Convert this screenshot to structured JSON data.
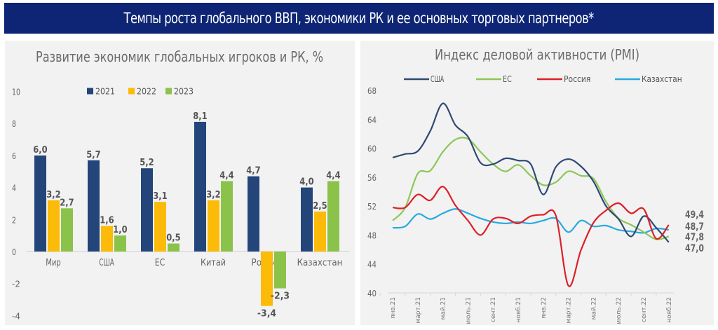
{
  "header": {
    "title": "Темпы роста глобального ВВП, экономики РК и ее основных торговых партнеров*"
  },
  "colors": {
    "banner_bg": "#0e2474",
    "c2021": "#24457a",
    "c2022": "#fbbb08",
    "c2023": "#8bc34a",
    "usa": "#2e4a74",
    "eu": "#8cc759",
    "russia": "#dc2027",
    "kazakhstan": "#29a9e0",
    "axis_text": "#666666"
  },
  "chart_data": [
    {
      "type": "bar",
      "title": "Развитие экономик глобальных игроков и РК, %",
      "xlabel": "",
      "ylabel": "",
      "ylim": [
        -4,
        10
      ],
      "yticks": [
        "10",
        "8",
        "6",
        "4",
        "2",
        "0",
        "-2",
        "-4"
      ],
      "ytick_values": [
        10,
        8,
        6,
        4,
        2,
        0,
        -2,
        -4
      ],
      "legend_position": "top",
      "grid": false,
      "categories": [
        "Мир",
        "США",
        "ЕС",
        "Китай",
        "Россия",
        "Казахстан"
      ],
      "series": [
        {
          "name": "2021",
          "values": [
            6.0,
            5.7,
            5.2,
            8.1,
            4.7,
            4.0
          ],
          "labels": [
            "6,0",
            "5,7",
            "5,2",
            "8,1",
            "4,7",
            "4,0"
          ]
        },
        {
          "name": "2022",
          "values": [
            3.2,
            1.6,
            3.1,
            3.2,
            -3.4,
            2.5
          ],
          "labels": [
            "3,2",
            "1,6",
            "3,1",
            "3,2",
            "-3,4",
            "2,5"
          ]
        },
        {
          "name": "2023",
          "values": [
            2.7,
            1.0,
            0.5,
            4.4,
            -2.3,
            4.4
          ],
          "labels": [
            "2,7",
            "1,0",
            "0,5",
            "4,4",
            "-2,3",
            "4,4"
          ]
        }
      ]
    },
    {
      "type": "line",
      "title": "Индекс деловой активности (PMI)",
      "xlabel": "",
      "ylabel": "",
      "ylim": [
        40,
        68
      ],
      "yticks": [
        "68",
        "64",
        "60",
        "56",
        "52",
        "48",
        "44",
        "40"
      ],
      "ytick_values": [
        68,
        64,
        60,
        56,
        52,
        48,
        44,
        40
      ],
      "legend_position": "top",
      "grid": false,
      "x": [
        "янв.21",
        "фев.21",
        "март.21",
        "апр.21",
        "май.21",
        "июнь.21",
        "июль.21",
        "авг.21",
        "сент.21",
        "окт.21",
        "нояб.21",
        "дек.21",
        "янв.22",
        "фев.22",
        "март.22",
        "апр.22",
        "май.22",
        "июнь.22",
        "июль.22",
        "авг.22",
        "сент.22",
        "окт.22",
        "нояб.22"
      ],
      "xtick_labels": [
        "янв.21",
        "март.21",
        "май.21",
        "июль.21",
        "сент.21",
        "нояб.21",
        "янв.22",
        "март.22",
        "май.22",
        "июль.22",
        "сент.22",
        "нояб.22"
      ],
      "series": [
        {
          "name": "США",
          "values": [
            58.7,
            59.2,
            59.6,
            62.4,
            66.2,
            63.2,
            61.6,
            58.0,
            57.8,
            58.6,
            58.3,
            57.8,
            53.6,
            57.4,
            58.5,
            57.5,
            55.4,
            52.0,
            50.2,
            47.8,
            50.6,
            49.0,
            47.0
          ],
          "end_label": "47,0"
        },
        {
          "name": "ЕС",
          "values": [
            50.0,
            51.8,
            56.5,
            56.9,
            59.5,
            61.2,
            61.3,
            59.5,
            57.8,
            56.8,
            57.7,
            56.2,
            54.9,
            55.3,
            56.8,
            56.2,
            55.8,
            52.6,
            50.3,
            49.4,
            48.4,
            47.4,
            47.8
          ],
          "end_label": "47,8"
        },
        {
          "name": "Россия",
          "values": [
            51.8,
            51.8,
            53.6,
            52.8,
            54.7,
            52.1,
            50.0,
            48.0,
            50.2,
            50.3,
            49.6,
            50.6,
            50.8,
            50.7,
            41.0,
            45.9,
            49.7,
            51.4,
            52.4,
            51.0,
            51.6,
            47.5,
            49.4
          ],
          "end_label": "49,4"
        },
        {
          "name": "Казахстан",
          "values": [
            49.0,
            49.2,
            50.9,
            50.2,
            51.0,
            51.6,
            51.0,
            50.3,
            49.8,
            49.6,
            49.8,
            49.6,
            50.0,
            50.3,
            48.4,
            50.0,
            49.2,
            49.3,
            48.7,
            48.5,
            48.3,
            48.9,
            48.7
          ],
          "end_label": "48,7"
        }
      ]
    }
  ]
}
